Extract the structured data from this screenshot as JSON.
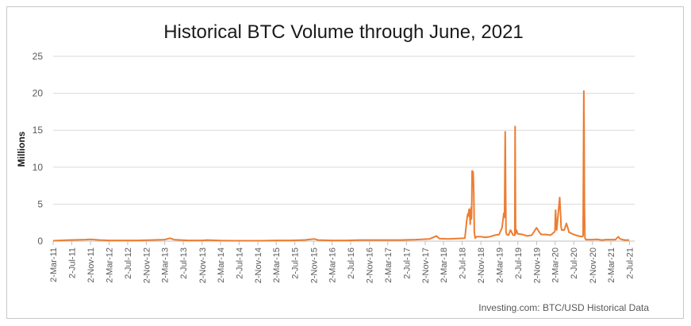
{
  "chart_data": {
    "type": "line",
    "title": "Historical BTC Volume through June, 2021",
    "xlabel": "",
    "ylabel": "Millions",
    "ylim": [
      0,
      25
    ],
    "yticks": [
      "0",
      "5",
      "10",
      "15",
      "20",
      "25"
    ],
    "yticks_values": [
      0,
      5,
      10,
      15,
      20,
      25
    ],
    "xticks": [
      "2-Mar-11",
      "2-Jul-11",
      "2-Nov-11",
      "2-Mar-12",
      "2-Jul-12",
      "2-Nov-12",
      "2-Mar-13",
      "2-Jul-13",
      "2-Nov-13",
      "2-Mar-14",
      "2-Jul-14",
      "2-Nov-14",
      "2-Mar-15",
      "2-Jul-15",
      "2-Nov-15",
      "2-Mar-16",
      "2-Jul-16",
      "2-Nov-16",
      "2-Mar-17",
      "2-Jul-17",
      "2-Nov-17",
      "2-Mar-18",
      "2-Jul-18",
      "2-Nov-18",
      "2-Mar-19",
      "2-Jul-19",
      "2-Nov-19",
      "2-Mar-20",
      "2-Jul-20",
      "2-Nov-20",
      "2-Mar-21",
      "2-Jul-21"
    ],
    "xlim": [
      "2011-03-02",
      "2021-08-05"
    ],
    "grid": true,
    "legend": "none",
    "line_color": "#ed7d31",
    "series": [
      {
        "x": [
          "2011-03-02",
          "2011-06-15",
          "2011-10-01",
          "2011-11-01",
          "2012-01-01",
          "2012-03-01",
          "2012-06-01",
          "2012-09-01",
          "2012-12-01",
          "2013-03-01",
          "2013-04-05",
          "2013-05-01",
          "2013-08-01",
          "2013-11-01",
          "2013-12-05",
          "2014-03-01",
          "2014-06-01",
          "2014-09-01",
          "2014-12-01",
          "2015-03-01",
          "2015-06-01",
          "2015-09-01",
          "2015-11-05",
          "2015-12-01",
          "2016-03-01",
          "2016-06-01",
          "2016-09-01",
          "2016-12-01",
          "2017-03-01",
          "2017-06-01",
          "2017-09-01",
          "2017-12-01",
          "2018-01-15",
          "2018-02-01",
          "2018-04-01",
          "2018-06-01",
          "2018-07-20",
          "2018-08-01",
          "2018-08-08",
          "2018-08-12",
          "2018-08-16",
          "2018-08-20",
          "2018-08-24",
          "2018-08-28",
          "2018-09-01",
          "2018-09-03",
          "2018-09-05",
          "2018-09-08",
          "2018-09-12",
          "2018-09-16",
          "2018-09-20",
          "2018-09-25",
          "2018-10-05",
          "2018-11-01",
          "2018-12-01",
          "2019-01-01",
          "2019-02-01",
          "2019-03-01",
          "2019-03-20",
          "2019-04-01",
          "2019-04-03",
          "2019-04-06",
          "2019-04-10",
          "2019-04-15",
          "2019-04-20",
          "2019-05-01",
          "2019-05-15",
          "2019-06-01",
          "2019-06-12",
          "2019-06-14",
          "2019-06-17",
          "2019-06-22",
          "2019-07-01",
          "2019-08-01",
          "2019-09-01",
          "2019-10-01",
          "2019-11-01",
          "2019-11-20",
          "2019-12-01",
          "2020-01-01",
          "2020-02-01",
          "2020-03-01",
          "2020-03-05",
          "2020-03-08",
          "2020-03-10",
          "2020-03-12",
          "2020-03-18",
          "2020-04-01",
          "2020-04-08",
          "2020-04-10",
          "2020-04-14",
          "2020-05-01",
          "2020-05-15",
          "2020-06-01",
          "2020-07-01",
          "2020-08-01",
          "2020-08-25",
          "2020-09-01",
          "2020-09-06",
          "2020-09-08",
          "2020-09-10",
          "2020-09-13",
          "2020-09-16",
          "2020-09-20",
          "2020-10-01",
          "2020-11-01",
          "2020-12-01",
          "2021-01-01",
          "2021-02-01",
          "2021-03-01",
          "2021-04-01",
          "2021-04-20",
          "2021-05-01",
          "2021-05-19",
          "2021-06-01",
          "2021-06-30"
        ],
        "values": [
          0.05,
          0.15,
          0.2,
          0.25,
          0.15,
          0.1,
          0.1,
          0.1,
          0.15,
          0.2,
          0.4,
          0.2,
          0.1,
          0.1,
          0.15,
          0.08,
          0.05,
          0.05,
          0.05,
          0.1,
          0.1,
          0.15,
          0.3,
          0.15,
          0.1,
          0.1,
          0.15,
          0.15,
          0.15,
          0.15,
          0.2,
          0.3,
          0.7,
          0.35,
          0.3,
          0.35,
          0.4,
          2.8,
          3.7,
          3.4,
          4.3,
          3.9,
          2.3,
          4.5,
          3.0,
          5.5,
          9.5,
          9.2,
          9.4,
          6.5,
          1.2,
          0.4,
          0.6,
          0.6,
          0.5,
          0.6,
          0.8,
          0.9,
          1.8,
          3.8,
          3.2,
          3.9,
          14.8,
          1.2,
          0.9,
          0.8,
          1.5,
          0.8,
          0.8,
          15.5,
          1.0,
          1.5,
          1.0,
          0.9,
          0.7,
          0.8,
          1.8,
          1.2,
          0.9,
          0.9,
          0.8,
          1.3,
          4.2,
          2.5,
          2.2,
          1.5,
          2.8,
          5.9,
          3.0,
          2.0,
          1.5,
          1.5,
          2.4,
          1.2,
          0.9,
          0.7,
          0.6,
          0.7,
          20.3,
          14.8,
          4.5,
          0.5,
          0.3,
          0.2,
          0.2,
          0.2,
          0.25,
          0.15,
          0.2,
          0.2,
          0.2,
          0.6,
          0.3,
          0.2,
          0.15,
          0.15
        ]
      }
    ],
    "source": "Investing.com: BTC/USD Historical Data"
  }
}
